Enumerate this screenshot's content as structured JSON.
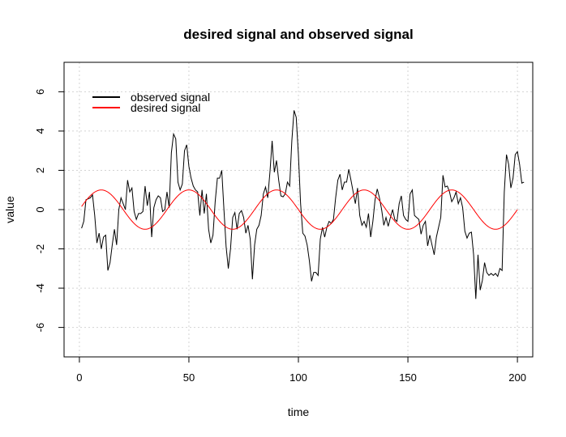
{
  "chart_data": {
    "type": "line",
    "title": "desired signal and observed signal",
    "xlabel": "time",
    "ylabel": "value",
    "xlim": [
      -7,
      207
    ],
    "ylim": [
      -7.5,
      7.5
    ],
    "x_ticks": [
      0,
      50,
      100,
      150,
      200
    ],
    "y_ticks": [
      -6,
      -4,
      -2,
      0,
      2,
      4,
      6
    ],
    "grid": true,
    "legend_position": "top-left",
    "series": [
      {
        "name": "observed signal",
        "color": "#000000",
        "x_start": 1,
        "x_step": 1,
        "values": [
          -0.95,
          -0.6,
          0.5,
          0.55,
          0.6,
          0.75,
          -0.3,
          -1.7,
          -1.2,
          -2.0,
          -1.4,
          -1.3,
          -3.1,
          -2.7,
          -1.8,
          -1.0,
          -1.8,
          0.0,
          0.6,
          0.3,
          0.0,
          1.5,
          0.9,
          1.1,
          -0.1,
          -0.5,
          -0.2,
          -0.2,
          -0.1,
          1.2,
          0.2,
          0.9,
          -1.4,
          0.1,
          0.5,
          0.7,
          0.6,
          -0.1,
          0.0,
          0.9,
          0.1,
          2.9,
          3.85,
          3.6,
          1.4,
          1.0,
          1.3,
          3.0,
          3.3,
          2.2,
          1.6,
          1.2,
          1.0,
          0.9,
          -0.3,
          1.0,
          -0.2,
          0.8,
          -1.0,
          -1.7,
          -1.3,
          0.4,
          1.6,
          1.6,
          2.0,
          0.0,
          -1.9,
          -3.0,
          -2.0,
          -0.4,
          -0.15,
          -1.0,
          -0.2,
          -0.05,
          -0.4,
          -1.2,
          -0.8,
          -1.5,
          -3.55,
          -1.8,
          -1.0,
          -0.8,
          -0.3,
          0.8,
          1.15,
          0.6,
          1.9,
          3.5,
          1.9,
          2.5,
          1.5,
          0.7,
          0.65,
          0.8,
          1.4,
          1.2,
          3.5,
          5.05,
          4.7,
          2.8,
          0.3,
          -1.2,
          -1.35,
          -1.8,
          -2.6,
          -3.65,
          -3.2,
          -3.2,
          -3.35,
          -1.5,
          -0.9,
          -1.4,
          -0.9,
          -0.6,
          -0.7,
          -0.5,
          0.6,
          1.5,
          1.8,
          1.0,
          1.4,
          1.4,
          2.05,
          1.5,
          0.9,
          0.3,
          1.1,
          -0.3,
          -0.8,
          -0.6,
          -0.9,
          -0.2,
          -1.4,
          -0.6,
          0.5,
          1.05,
          0.6,
          0.0,
          -0.8,
          -0.4,
          -0.85,
          -0.4,
          0.0,
          -0.5,
          -0.6,
          0.3,
          0.7,
          -0.3,
          -0.5,
          -0.6,
          0.8,
          1.0,
          -0.3,
          -0.4,
          -0.5,
          -1.25,
          -0.8,
          -0.6,
          -1.85,
          -1.3,
          -1.8,
          -2.3,
          -1.4,
          -0.9,
          -0.4,
          1.75,
          1.15,
          1.2,
          0.9,
          0.4,
          0.6,
          0.9,
          0.3,
          0.6,
          0.1,
          -1.1,
          -1.45,
          -1.2,
          -1.15,
          -2.3,
          -4.55,
          -2.3,
          -4.1,
          -3.6,
          -2.7,
          -3.2,
          -3.35,
          -3.25,
          -3.35,
          -3.25,
          -3.4,
          -3.0,
          -3.1,
          0.9,
          2.8,
          2.3,
          1.1,
          1.6,
          2.8,
          2.95,
          2.3,
          1.35,
          1.4
        ]
      },
      {
        "name": "desired signal",
        "color": "#ff0000",
        "x_start": 1,
        "x_step": 1,
        "function": "sin(2*pi*t/40)"
      }
    ]
  }
}
